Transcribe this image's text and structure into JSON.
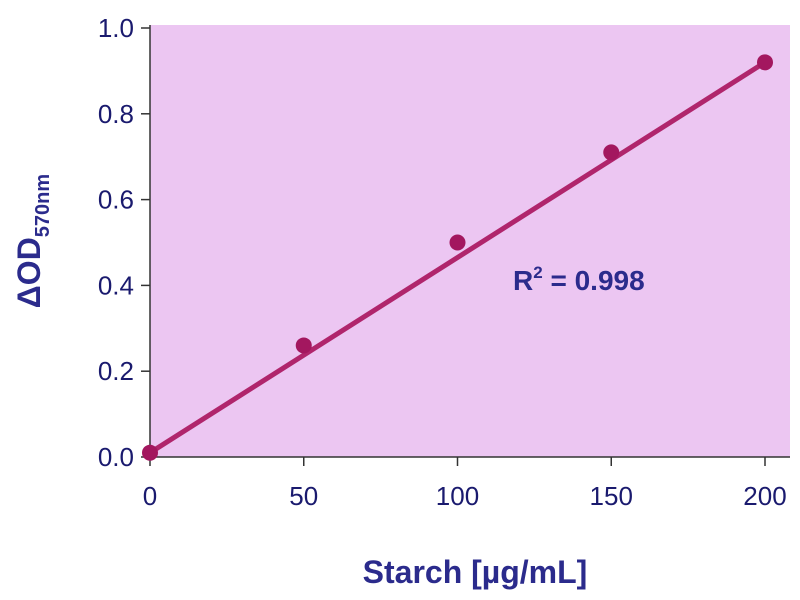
{
  "chart_data": {
    "type": "scatter",
    "xlabel": "Starch [µg/mL]",
    "ylabel": {
      "main": "ΔOD",
      "subscript": "570nm"
    },
    "xlim": [
      0,
      200
    ],
    "ylim": [
      0,
      1.0
    ],
    "x_ticks": [
      "0",
      "50",
      "100",
      "150",
      "200"
    ],
    "y_ticks": [
      "0.0",
      "0.2",
      "0.4",
      "0.6",
      "0.8",
      "1.0"
    ],
    "series": [
      {
        "points": [
          {
            "x": 0,
            "y": 0.01
          },
          {
            "x": 50,
            "y": 0.26
          },
          {
            "x": 100,
            "y": 0.5
          },
          {
            "x": 150,
            "y": 0.71
          },
          {
            "x": 200,
            "y": 0.92
          }
        ],
        "fit_line": {
          "x": [
            0,
            200
          ],
          "y": [
            0.01,
            0.92
          ]
        }
      }
    ],
    "annotation": {
      "base": "R",
      "superscript": "2",
      "rest": " = 0.998"
    },
    "grid": false,
    "legend": "none"
  },
  "colors": {
    "plot_background": "#ecc6f2",
    "marker": "#a3175f",
    "line": "#b0256c",
    "text": "#2b2b8c",
    "axis": "#333333"
  }
}
